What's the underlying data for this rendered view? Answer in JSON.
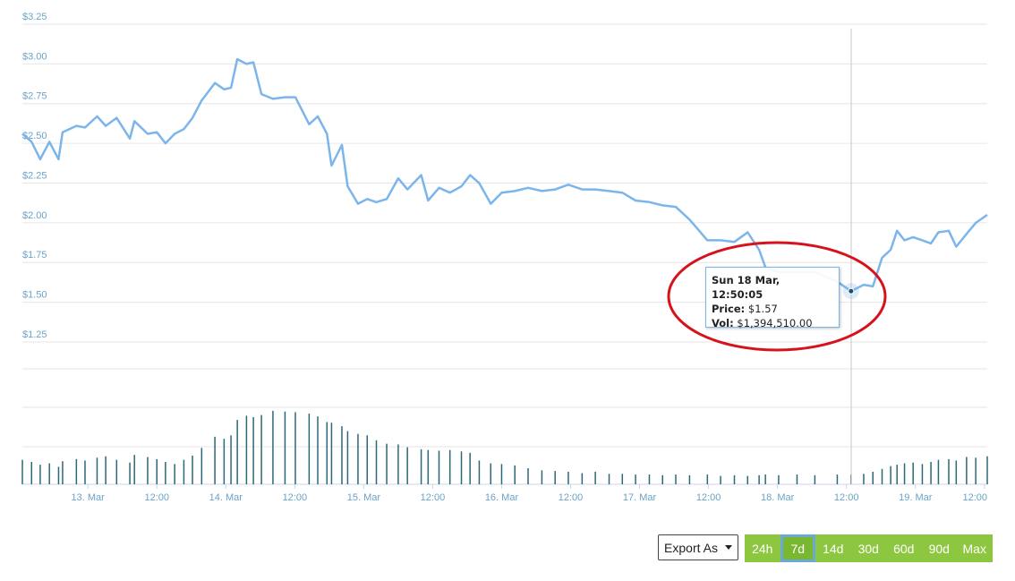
{
  "chart_data": {
    "type": "line",
    "color": "#7cb5ec",
    "xlim": [
      -11.4,
      156.5
    ],
    "xticks": [
      {
        "value": 0,
        "label": "13. Mar"
      },
      {
        "value": 12,
        "label": "12:00"
      },
      {
        "value": 24,
        "label": "14. Mar"
      },
      {
        "value": 36,
        "label": "12:00"
      },
      {
        "value": 48,
        "label": "15. Mar"
      },
      {
        "value": 60,
        "label": "12:00"
      },
      {
        "value": 72,
        "label": "16. Mar"
      },
      {
        "value": 84,
        "label": "12:00"
      },
      {
        "value": 96,
        "label": "17. Mar"
      },
      {
        "value": 108,
        "label": "12:00"
      },
      {
        "value": 120,
        "label": "18. Mar"
      },
      {
        "value": 132,
        "label": "12:00"
      },
      {
        "value": 144,
        "label": "19. Mar"
      },
      {
        "value": 156,
        "label": "12:00"
      }
    ],
    "ylim": [
      1.25,
      3.25
    ],
    "yticks": [
      {
        "value": 1.25,
        "label": "$1.25"
      },
      {
        "value": 1.5,
        "label": "$1.50"
      },
      {
        "value": 1.75,
        "label": "$1.75"
      },
      {
        "value": 2,
        "label": "$2.00"
      },
      {
        "value": 2.25,
        "label": "$2.25"
      },
      {
        "value": 2.5,
        "label": "$2.50"
      },
      {
        "value": 2.75,
        "label": "$2.75"
      },
      {
        "value": 3,
        "label": "$3.00"
      },
      {
        "value": 3.25,
        "label": "$3.25"
      }
    ],
    "grid": true,
    "x": [
      -11.4,
      -9.8,
      -8.3,
      -6.7,
      -5.1,
      -4.4,
      -2.0,
      -0.5,
      1.6,
      3.1,
      5.0,
      7.3,
      8.1,
      10.4,
      12.0,
      13.5,
      15.1,
      16.7,
      18.2,
      19.8,
      22.1,
      23.7,
      24.9,
      26.0,
      27.6,
      28.8,
      30.2,
      32.2,
      34.3,
      36.1,
      38.5,
      40.0,
      41.6,
      42.4,
      44.2,
      45.2,
      47.0,
      48.6,
      50.2,
      52.0,
      54.0,
      55.6,
      58.0,
      59.2,
      61.1,
      63.0,
      65.0,
      66.5,
      68.1,
      70.1,
      72.0,
      74.3,
      76.6,
      79.0,
      81.3,
      83.6,
      86.0,
      88.3,
      90.7,
      93.0,
      95.3,
      97.7,
      100.0,
      102.3,
      104.7,
      107.8,
      110.1,
      112.5,
      114.8,
      116.8,
      117.9,
      120.2,
      123.4,
      126.5,
      130.4,
      132.8,
      135.0,
      136.6,
      138.2,
      139.7,
      140.8,
      142.1,
      143.6,
      145.2,
      146.7,
      148.0,
      149.8,
      151.1,
      152.9,
      154.5,
      156.5
    ],
    "values": [
      2.56,
      2.51,
      2.4,
      2.51,
      2.4,
      2.57,
      2.61,
      2.6,
      2.67,
      2.61,
      2.66,
      2.53,
      2.64,
      2.56,
      2.57,
      2.5,
      2.56,
      2.59,
      2.66,
      2.77,
      2.88,
      2.84,
      2.85,
      3.03,
      3.0,
      3.01,
      2.81,
      2.78,
      2.79,
      2.79,
      2.62,
      2.67,
      2.56,
      2.36,
      2.49,
      2.23,
      2.12,
      2.15,
      2.13,
      2.15,
      2.28,
      2.21,
      2.3,
      2.14,
      2.22,
      2.19,
      2.23,
      2.3,
      2.25,
      2.12,
      2.19,
      2.2,
      2.22,
      2.2,
      2.21,
      2.24,
      2.21,
      2.21,
      2.2,
      2.19,
      2.14,
      2.13,
      2.11,
      2.1,
      2.02,
      1.89,
      1.89,
      1.88,
      1.94,
      1.83,
      1.72,
      1.69,
      1.69,
      1.69,
      1.63,
      1.57,
      1.61,
      1.6,
      1.78,
      1.83,
      1.95,
      1.89,
      1.91,
      1.89,
      1.87,
      1.94,
      1.95,
      1.85,
      1.93,
      2.0,
      2.05
    ],
    "volume_color": "#2b6878",
    "volume_ylim": [
      0,
      11000000
    ],
    "volume_values": [
      3500000,
      3200000,
      2800000,
      3000000,
      2500000,
      3300000,
      3600000,
      3400000,
      3800000,
      4000000,
      3500000,
      3100000,
      4200000,
      3900000,
      3600000,
      3200000,
      2900000,
      3500000,
      4100000,
      5200000,
      6800000,
      6500000,
      7000000,
      9200000,
      9800000,
      9600000,
      9900000,
      10500000,
      10400000,
      10300000,
      10100000,
      9700000,
      8900000,
      8800000,
      8300000,
      7600000,
      7200000,
      7000000,
      6300000,
      5800000,
      5700000,
      5300000,
      5000000,
      4900000,
      4800000,
      4900000,
      4700000,
      4500000,
      3400000,
      3000000,
      2900000,
      2700000,
      2300000,
      2000000,
      1900000,
      1800000,
      1600000,
      1800000,
      1500000,
      1500000,
      1400000,
      1400000,
      1300000,
      1400000,
      1300000,
      1400000,
      1200000,
      1300000,
      1200000,
      1300000,
      1400000,
      1300000,
      1400000,
      1300000,
      1400000,
      1394510,
      1500000,
      1800000,
      2200000,
      2600000,
      2800000,
      3000000,
      3100000,
      2900000,
      3200000,
      3500000,
      3600000,
      3400000,
      3900000,
      3800000,
      4000000
    ],
    "tooltip": {
      "x": 132.83,
      "title": "Sun 18 Mar, 12:50:05",
      "rows": [
        {
          "label": "Price:",
          "value": "$1.57"
        },
        {
          "label": "Vol:",
          "value": "$1,394,510.00"
        }
      ]
    }
  },
  "controls": {
    "export": "Export As",
    "ranges": [
      "24h",
      "7d",
      "14d",
      "30d",
      "60d",
      "90d",
      "Max"
    ],
    "selected": "7d"
  }
}
